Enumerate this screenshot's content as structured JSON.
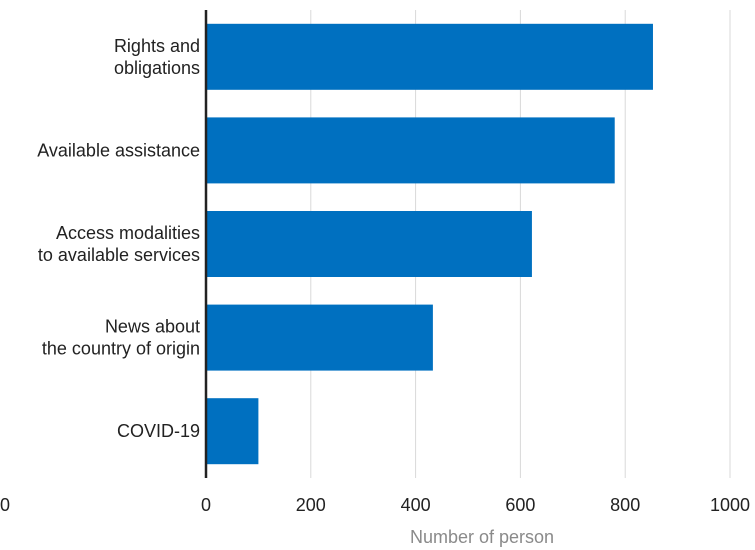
{
  "chart_data": {
    "type": "bar",
    "orientation": "horizontal",
    "categories": [
      [
        "Rights and",
        "obligations"
      ],
      [
        "Available assistance"
      ],
      [
        "Access modalities",
        "to available services"
      ],
      [
        "News about",
        "the country of origin"
      ],
      [
        "COVID-19"
      ]
    ],
    "values": [
      853,
      780,
      622,
      433,
      100
    ],
    "xlabel": "Number of person",
    "ylabel": "",
    "title": "",
    "xlim": [
      0,
      1000
    ],
    "xticks": [
      "0",
      "200",
      "400",
      "600",
      "800",
      "1000"
    ],
    "stray_tick_label": "0",
    "bar_color": "#0070c0",
    "grid": true,
    "grid_color": "#d9d9d9",
    "axis_color": "#222222"
  }
}
